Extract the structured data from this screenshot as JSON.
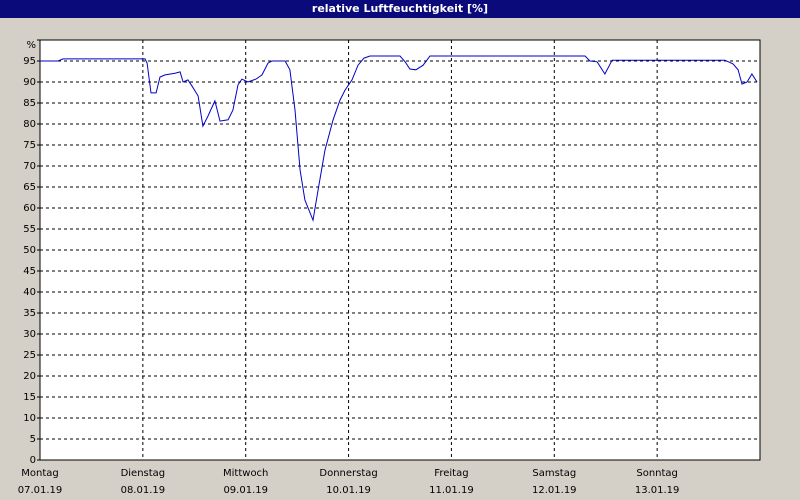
{
  "chart_data": {
    "type": "line",
    "title": "relative Luftfeuchtigkeit [%]",
    "x": [
      0,
      4.2,
      5.4,
      24.5,
      25.0,
      25.9,
      27.1,
      28.0,
      29.2,
      31.5,
      32.7,
      33.4,
      34.5,
      35.5,
      36.9,
      38.0,
      39.2,
      40.8,
      42.0,
      43.9,
      45.0,
      46.2,
      47.1,
      48.5,
      50.4,
      51.8,
      53.2,
      54.1,
      57.2,
      58.3,
      59.5,
      60.7,
      61.8,
      63.7,
      64.9,
      66.5,
      68.4,
      70.0,
      71.2,
      72.8,
      74.2,
      75.6,
      77.0,
      84.0,
      85.2,
      86.3,
      87.7,
      89.4,
      91.0,
      127.2,
      128.3,
      130.0,
      131.8,
      133.5,
      135.3,
      159.8,
      161.7,
      162.9,
      163.8,
      165.0,
      166.1,
      167.3
    ],
    "values": [
      95,
      95,
      95.5,
      95.5,
      94.5,
      87.4,
      87.4,
      91.2,
      91.7,
      92.1,
      92.4,
      90,
      90.5,
      89,
      86.7,
      79.5,
      81.9,
      85.5,
      80.7,
      81,
      83.3,
      89.3,
      90.7,
      90,
      90.7,
      91.7,
      94.5,
      95,
      95,
      92.9,
      83.3,
      69,
      61.9,
      57.1,
      64.3,
      73.8,
      81,
      85.7,
      88.1,
      90.5,
      94,
      95.7,
      96.2,
      96.2,
      94.8,
      93.1,
      92.9,
      94,
      96.2,
      96.2,
      95,
      94.8,
      91.9,
      95.2,
      95.2,
      95.2,
      94.3,
      92.9,
      89.5,
      90,
      91.9,
      90
    ],
    "color": "#0000c8",
    "xlim": [
      0,
      168
    ],
    "xticks": [
      {
        "value": 0,
        "label": "Montag"
      },
      {
        "value": 24,
        "label": "Dienstag"
      },
      {
        "value": 48,
        "label": "Mittwoch"
      },
      {
        "value": 72,
        "label": "Donnerstag"
      },
      {
        "value": 96,
        "label": "Freitag"
      },
      {
        "value": 120,
        "label": "Samstag"
      },
      {
        "value": 144,
        "label": "Sonntag"
      }
    ],
    "xtick_dates": [
      "07.01.19",
      "08.01.19",
      "09.01.19",
      "10.01.19",
      "11.01.19",
      "12.01.19",
      "13.01.19"
    ],
    "ylim": [
      0,
      100
    ],
    "yticks": [
      0,
      5,
      10,
      15,
      20,
      25,
      30,
      35,
      40,
      45,
      50,
      55,
      60,
      65,
      70,
      75,
      80,
      85,
      90,
      95,
      {
        "value": 100,
        "label": "%"
      }
    ],
    "grid": true
  }
}
